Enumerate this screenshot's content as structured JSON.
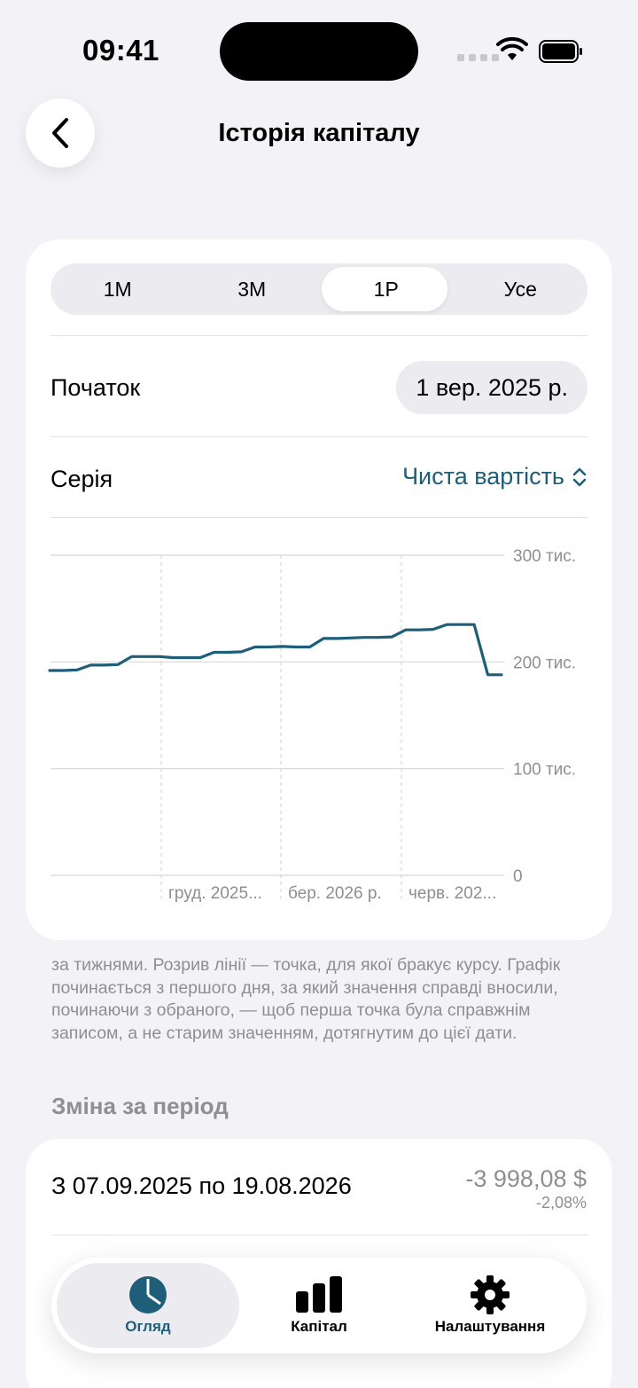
{
  "status": {
    "time": "09:41"
  },
  "header": {
    "title": "Історія капіталу"
  },
  "range_tabs": [
    "1М",
    "3М",
    "1Р",
    "Усе"
  ],
  "range_selected": "1Р",
  "start": {
    "label": "Початок",
    "value": "1 вер. 2025 р."
  },
  "series": {
    "label": "Серія",
    "value": "Чиста вартість"
  },
  "chart_data": {
    "type": "line",
    "y_ticks": [
      "300 тис.",
      "200 тис.",
      "100 тис.",
      "0"
    ],
    "ylim": [
      0,
      300000
    ],
    "x_ticks": [
      "груд. 2025...",
      "бер. 2026 р.",
      "черв. 202..."
    ],
    "series": [
      {
        "values": [
          192000,
          192000,
          192500,
          197000,
          197000,
          197500,
          205000,
          205000,
          205000,
          204000,
          204000,
          204000,
          209000,
          209000,
          209500,
          214000,
          214000,
          214500,
          214000,
          214000,
          222000,
          222000,
          222500,
          223000,
          223000,
          223500,
          230000,
          230000,
          230500,
          235000,
          235000,
          235000,
          188000,
          188000
        ]
      }
    ],
    "grid": true,
    "color": "#1f5e78"
  },
  "note": "за тижнями. Розрив лінії — точка, для якої бракує курсу. Графік починається з першого дня, за який значення справді вносили, починаючи з обраного, — щоб перша точка була справжнім записом, а не старим значенням, дотягнутим до цієї дати.",
  "change": {
    "heading": "Зміна за період",
    "period": "З 07.09.2025 по 19.08.2026",
    "amount": "-3 998,08 $",
    "percent": "-2,08%"
  },
  "tabbar": {
    "overview": "Огляд",
    "capital": "Капітал",
    "settings": "Налаштування"
  }
}
